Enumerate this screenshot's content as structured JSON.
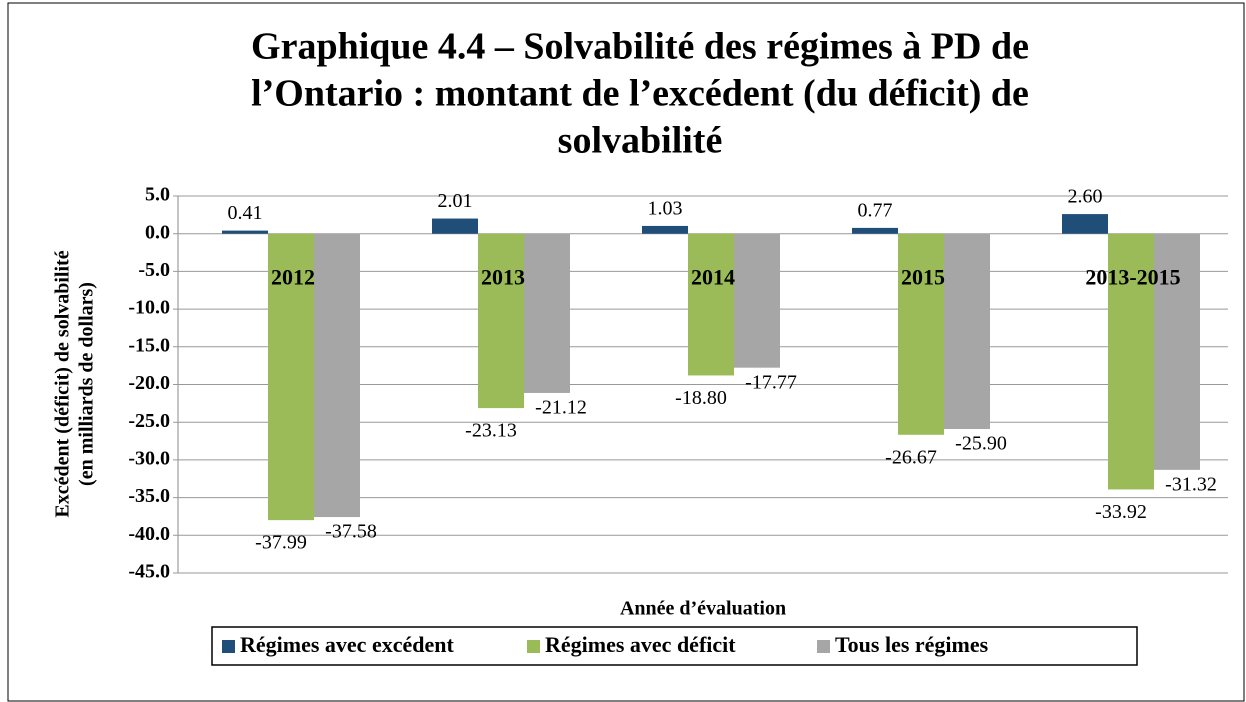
{
  "chart_data": {
    "type": "bar",
    "title": [
      "Graphique 4.4 – Solvabilité des régimes à PD de",
      "l’Ontario : montant de l’excédent (du déficit) de",
      "solvabilité"
    ],
    "y_label": [
      "Excédent (déficit) de solvabilité",
      "(en milliards de dollars)"
    ],
    "x_label": "Année d’évaluation",
    "categories": [
      "2012",
      "2013",
      "2014",
      "2015",
      "2013-2015"
    ],
    "series": [
      {
        "name": "Régimes avec excédent",
        "color": "#1f4e79",
        "values": [
          0.41,
          2.01,
          1.03,
          0.77,
          2.6
        ],
        "value_labels": [
          "0.41",
          "2.01",
          "1.03",
          "0.77",
          "2.60"
        ]
      },
      {
        "name": "Régimes avec déficit",
        "color": "#9bbb59",
        "values": [
          -37.99,
          -23.13,
          -18.8,
          -26.67,
          -33.92
        ],
        "value_labels": [
          "-37.99",
          "-23.13",
          "-18.80",
          "-26.67",
          "-33.92"
        ]
      },
      {
        "name": "Tous les régimes",
        "color": "#a6a6a6",
        "values": [
          -37.58,
          -21.12,
          -17.77,
          -25.9,
          -31.32
        ],
        "value_labels": [
          "-37.58",
          "-21.12",
          "-17.77",
          "-25.90",
          "-31.32"
        ]
      }
    ],
    "ylim": [
      -45,
      5
    ],
    "yticks": [
      {
        "value": 5,
        "label": "5.0"
      },
      {
        "value": 0,
        "label": "0.0"
      },
      {
        "value": -5,
        "label": "-5.0"
      },
      {
        "value": -10,
        "label": "-10.0"
      },
      {
        "value": -15,
        "label": "-15.0"
      },
      {
        "value": -20,
        "label": "-20.0"
      },
      {
        "value": -25,
        "label": "-25.0"
      },
      {
        "value": -30,
        "label": "-30.0"
      },
      {
        "value": -35,
        "label": "-35.0"
      },
      {
        "value": -40,
        "label": "-40.0"
      },
      {
        "value": -45,
        "label": "-45.0"
      }
    ],
    "grid": true,
    "legend": "bottom"
  }
}
